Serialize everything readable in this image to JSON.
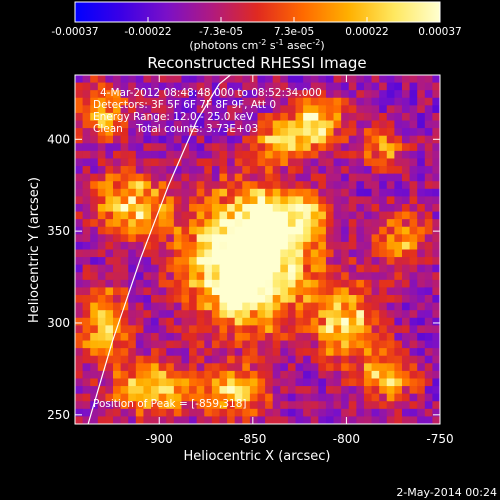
{
  "colorbar": {
    "ticks": [
      "-0.00037",
      "-0.00022",
      "-7.3e-05",
      "7.3e-05",
      "0.00022",
      "0.00037"
    ],
    "unit_main": "(photons cm",
    "unit_sup1": "-2",
    "unit_s": " s",
    "unit_sup2": "-1",
    "unit_asec": " asec",
    "unit_sup3": "-2",
    "unit_close": ")"
  },
  "title": "Reconstructed RHESSI Image",
  "annotations": {
    "time_range": "4-Mar-2012 08:48:48.000 to 08:52:34.000",
    "detectors": "Detectors: 3F 5F 6F 7F 8F 9F, Att 0",
    "energy": "Energy Range: 12.0 - 25.0 keV",
    "clean": "Clean    Total counts: 3.73E+03",
    "peak": "Position of Peak = [-859,318]"
  },
  "footer": {
    "date": "2-May-2014 00:24"
  },
  "chart_data": {
    "type": "heatmap",
    "title": "Reconstructed RHESSI Image",
    "xlabel": "Heliocentric X (arcsec)",
    "ylabel": "Heliocentric Y (arcsec)",
    "xlim": [
      -945,
      -750
    ],
    "ylim": [
      245,
      435
    ],
    "xticks": [
      -900,
      -850,
      -800,
      -750
    ],
    "xtick_labels": [
      "-900",
      "-850",
      "-800",
      "-750"
    ],
    "yticks": [
      250,
      300,
      350,
      400
    ],
    "ytick_labels": [
      "250",
      "300",
      "350",
      "400"
    ],
    "colorbar_range": [
      -0.00037,
      0.00037
    ],
    "peak_position": [
      -859,
      318
    ],
    "limb_curve": {
      "x": [
        -938,
        -925,
        -910,
        -895,
        -880,
        -868,
        -862
      ],
      "y": [
        245,
        290,
        335,
        375,
        410,
        430,
        435
      ]
    },
    "blobs": [
      {
        "x": -852,
        "y": 335,
        "sx": 22,
        "sy": 24,
        "a": 1.0
      },
      {
        "x": -859,
        "y": 318,
        "sx": 6,
        "sy": 6,
        "a": 0.6
      },
      {
        "x": -840,
        "y": 355,
        "sx": 10,
        "sy": 10,
        "a": 0.35
      },
      {
        "x": -800,
        "y": 300,
        "sx": 12,
        "sy": 14,
        "a": 0.55
      },
      {
        "x": -778,
        "y": 270,
        "sx": 10,
        "sy": 10,
        "a": 0.5
      },
      {
        "x": -915,
        "y": 365,
        "sx": 14,
        "sy": 12,
        "a": 0.55
      },
      {
        "x": -930,
        "y": 300,
        "sx": 9,
        "sy": 14,
        "a": 0.5
      },
      {
        "x": -905,
        "y": 265,
        "sx": 14,
        "sy": 10,
        "a": 0.55
      },
      {
        "x": -815,
        "y": 410,
        "sx": 10,
        "sy": 10,
        "a": 0.55
      },
      {
        "x": -835,
        "y": 400,
        "sx": 10,
        "sy": 8,
        "a": 0.45
      },
      {
        "x": -770,
        "y": 345,
        "sx": 10,
        "sy": 12,
        "a": 0.4
      },
      {
        "x": -930,
        "y": 415,
        "sx": 10,
        "sy": 10,
        "a": 0.45
      },
      {
        "x": -780,
        "y": 395,
        "sx": 8,
        "sy": 8,
        "a": 0.4
      },
      {
        "x": -860,
        "y": 262,
        "sx": 12,
        "sy": 10,
        "a": 0.5
      },
      {
        "x": -820,
        "y": 360,
        "sx": 8,
        "sy": 8,
        "a": 0.35
      }
    ],
    "colorscale": [
      "#0000ff",
      "#3a00e6",
      "#7a10c8",
      "#b01a80",
      "#e02a20",
      "#ff6a00",
      "#ffb000",
      "#ffe860",
      "#ffffd0"
    ]
  }
}
